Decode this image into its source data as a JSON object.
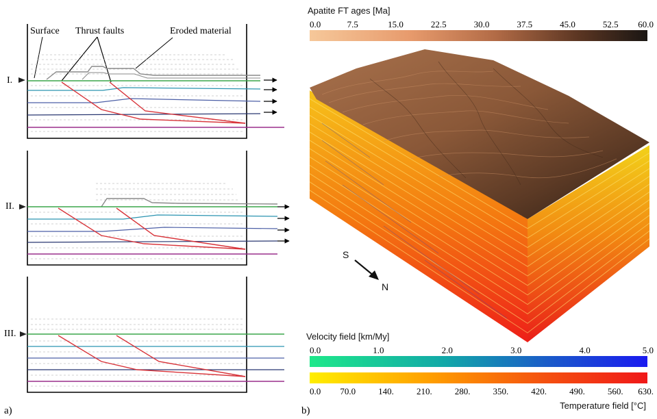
{
  "panel_a": {
    "label": "a)",
    "annotations": {
      "surface": "Surface",
      "thrust_faults": "Thrust faults",
      "eroded": "Eroded material"
    },
    "stages": [
      {
        "label": "I."
      },
      {
        "label": "II."
      },
      {
        "label": "III."
      }
    ],
    "colors": {
      "fault": "#d8343a",
      "surface_layer": "#3aa54a",
      "layer2": "#2a93b0",
      "layer3": "#4c5fa6",
      "layer4": "#283670",
      "layer5": "#9a2f8c",
      "eroded": "#8a8a8a"
    }
  },
  "panel_b": {
    "label": "b)",
    "apatite_scale": {
      "title": "Apatite FT ages [Ma]",
      "ticks": [
        "0.0",
        "7.5",
        "15.0",
        "22.5",
        "30.0",
        "37.5",
        "45.0",
        "52.5",
        "60.0"
      ],
      "colors": [
        "#f6c89a",
        "#1a1613"
      ]
    },
    "compass": {
      "from": "S",
      "to": "N"
    },
    "velocity_scale": {
      "title": "Velocity field [km/My]",
      "ticks": [
        "0.0",
        "1.0",
        "2.0",
        "3.0",
        "4.0",
        "5.0"
      ],
      "colors": [
        "#1ee88a",
        "#1a1af0"
      ]
    },
    "temperature_scale": {
      "title": "Temperature field [°C]",
      "ticks": [
        "0.0",
        "70.0",
        "140.",
        "210.",
        "280.",
        "350.",
        "420.",
        "490.",
        "560.",
        "630."
      ],
      "colors": [
        "#ffee00",
        "#f01818"
      ]
    }
  }
}
